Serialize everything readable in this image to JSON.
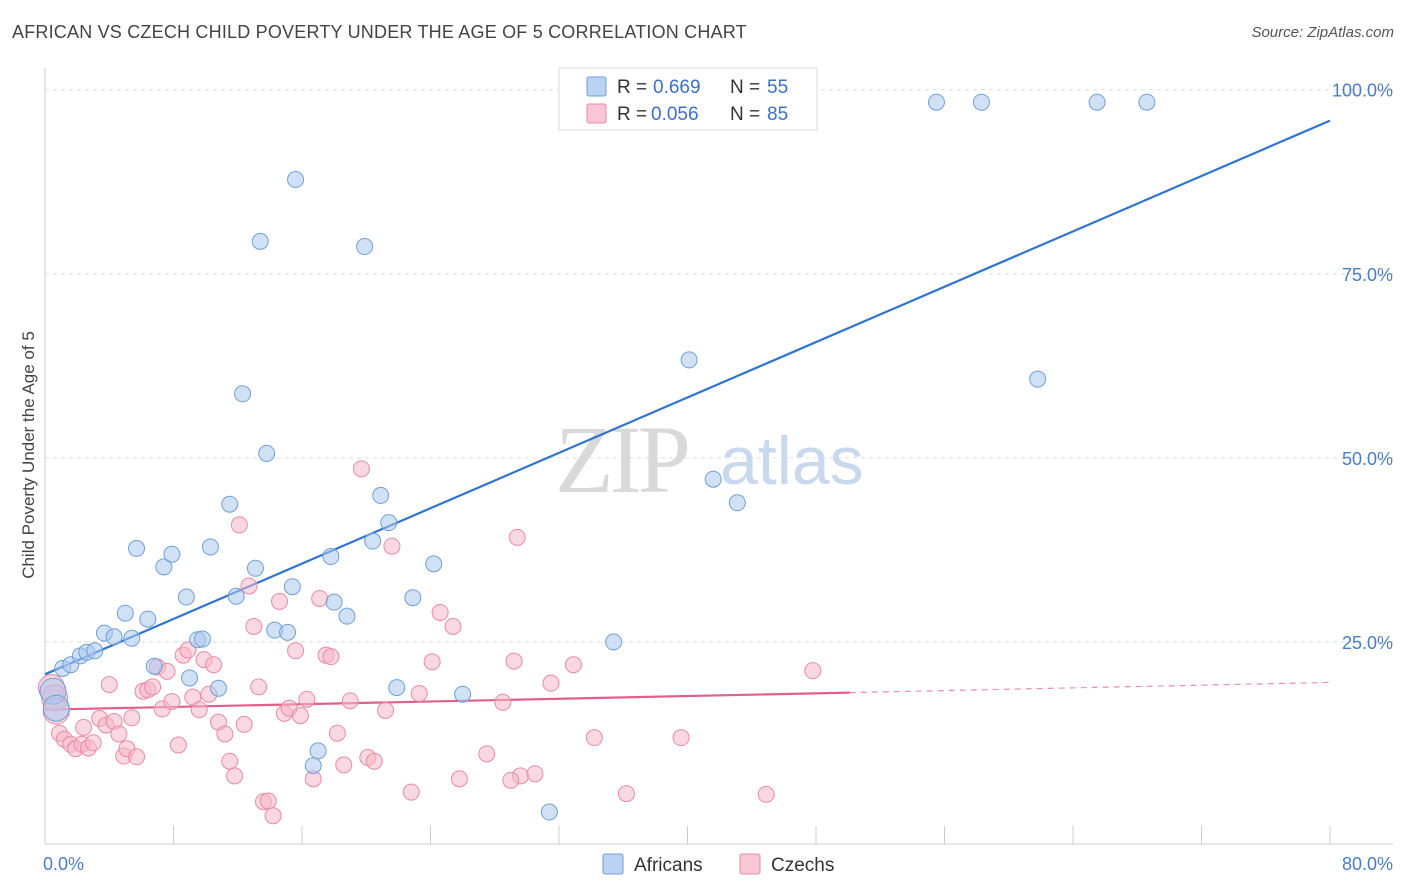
{
  "header": {
    "title": "AFRICAN VS CZECH CHILD POVERTY UNDER THE AGE OF 5 CORRELATION CHART",
    "source": "Source: ZipAtlas.com"
  },
  "watermark": {
    "zip": "ZIP",
    "atlas": "atlas"
  },
  "legend": {
    "r_label": "R =",
    "n_label": "N =",
    "rows": [
      {
        "r": "0.669",
        "n": "55",
        "color": "#a9c8ef"
      },
      {
        "r": "0.056",
        "n": "85",
        "color": "#f6b8c9"
      }
    ]
  },
  "bottom_legend": [
    {
      "label": "Africans",
      "color": "#a9c8ef"
    },
    {
      "label": "Czechs",
      "color": "#f6b8c9"
    }
  ],
  "colors": {
    "africans_fill": "#a9c8ef",
    "africans_stroke": "#6f9fd8",
    "africans_line": "#2f74d0",
    "czechs_fill": "#f6b8c9",
    "czechs_stroke": "#e98aa6",
    "czechs_line": "#e0608a",
    "tick_text": "#4a7cc7",
    "grid": "#dddddd"
  },
  "chart_data": {
    "type": "scatter",
    "title": "AFRICAN VS CZECH CHILD POVERTY UNDER THE AGE OF 5 CORRELATION CHART",
    "xlabel": "",
    "ylabel": "Child Poverty Under the Age of 5",
    "xlim": [
      0,
      80
    ],
    "ylim": [
      0,
      100
    ],
    "x_tick_labels": [
      "0.0%",
      "80.0%"
    ],
    "y_ticks": [
      25,
      50,
      75,
      100
    ],
    "y_tick_labels": [
      "25.0%",
      "50.0%",
      "75.0%",
      "100.0%"
    ],
    "grid": true,
    "legend_position": "top-center",
    "series": [
      {
        "name": "Africans",
        "r": 0.669,
        "n": 55,
        "trend": {
          "x0": 0,
          "y0": 20.6,
          "x1": 80,
          "y1": 95.8,
          "dashed_from": null
        },
        "points": [
          [
            0.5,
            18.3
          ],
          [
            0.7,
            16.0
          ],
          [
            1.1,
            21.4
          ],
          [
            1.6,
            21.9
          ],
          [
            2.2,
            23.1
          ],
          [
            2.6,
            23.6
          ],
          [
            3.1,
            23.8
          ],
          [
            3.7,
            26.2
          ],
          [
            4.3,
            25.7
          ],
          [
            5.0,
            28.9
          ],
          [
            5.4,
            25.5
          ],
          [
            5.7,
            37.7
          ],
          [
            6.4,
            28.1
          ],
          [
            6.8,
            21.7
          ],
          [
            7.4,
            35.2
          ],
          [
            7.9,
            36.9
          ],
          [
            8.8,
            31.1
          ],
          [
            9.0,
            20.1
          ],
          [
            9.5,
            25.3
          ],
          [
            9.8,
            25.4
          ],
          [
            10.3,
            37.9
          ],
          [
            10.8,
            18.7
          ],
          [
            11.5,
            43.7
          ],
          [
            11.9,
            31.2
          ],
          [
            12.3,
            58.7
          ],
          [
            13.1,
            35.0
          ],
          [
            13.4,
            79.4
          ],
          [
            13.8,
            50.6
          ],
          [
            14.3,
            26.6
          ],
          [
            15.1,
            26.3
          ],
          [
            15.4,
            32.5
          ],
          [
            15.6,
            87.8
          ],
          [
            16.7,
            8.2
          ],
          [
            17.0,
            10.2
          ],
          [
            17.8,
            36.6
          ],
          [
            18.0,
            30.4
          ],
          [
            18.8,
            28.5
          ],
          [
            19.9,
            78.7
          ],
          [
            20.4,
            38.7
          ],
          [
            20.9,
            44.9
          ],
          [
            21.4,
            41.2
          ],
          [
            21.9,
            18.8
          ],
          [
            22.9,
            31.0
          ],
          [
            24.2,
            35.6
          ],
          [
            26.0,
            17.9
          ],
          [
            31.4,
            1.9
          ],
          [
            35.4,
            25.0
          ],
          [
            40.1,
            63.3
          ],
          [
            41.6,
            47.1
          ],
          [
            43.1,
            43.9
          ],
          [
            55.5,
            98.3
          ],
          [
            58.3,
            98.3
          ],
          [
            61.8,
            60.7
          ],
          [
            65.5,
            98.3
          ],
          [
            68.6,
            98.3
          ]
        ]
      },
      {
        "name": "Czechs",
        "r": 0.056,
        "n": 85,
        "trend": {
          "x0": 0,
          "y0": 15.8,
          "x1": 80,
          "y1": 19.5,
          "dashed_from": 50.1
        },
        "points": [
          [
            0.4,
            18.8
          ],
          [
            0.6,
            17.4
          ],
          [
            0.7,
            15.6
          ],
          [
            0.9,
            12.6
          ],
          [
            1.2,
            11.8
          ],
          [
            1.6,
            11.1
          ],
          [
            1.9,
            10.5
          ],
          [
            2.3,
            11.1
          ],
          [
            2.4,
            13.4
          ],
          [
            2.7,
            10.6
          ],
          [
            3.0,
            11.3
          ],
          [
            3.4,
            14.6
          ],
          [
            3.8,
            13.7
          ],
          [
            4.0,
            19.2
          ],
          [
            4.3,
            14.2
          ],
          [
            4.6,
            12.5
          ],
          [
            4.9,
            9.5
          ],
          [
            5.1,
            10.5
          ],
          [
            5.4,
            14.7
          ],
          [
            5.7,
            9.4
          ],
          [
            6.1,
            18.3
          ],
          [
            6.4,
            18.5
          ],
          [
            6.7,
            18.9
          ],
          [
            7.0,
            21.6
          ],
          [
            7.3,
            15.9
          ],
          [
            7.6,
            21.0
          ],
          [
            7.9,
            16.9
          ],
          [
            8.3,
            11.0
          ],
          [
            8.6,
            23.2
          ],
          [
            8.9,
            23.9
          ],
          [
            9.2,
            17.5
          ],
          [
            9.6,
            15.8
          ],
          [
            9.9,
            22.6
          ],
          [
            10.2,
            17.9
          ],
          [
            10.5,
            21.9
          ],
          [
            10.8,
            14.1
          ],
          [
            11.2,
            12.5
          ],
          [
            11.5,
            8.8
          ],
          [
            11.8,
            6.8
          ],
          [
            12.1,
            40.9
          ],
          [
            12.4,
            13.8
          ],
          [
            12.7,
            32.6
          ],
          [
            13.0,
            27.1
          ],
          [
            13.3,
            18.9
          ],
          [
            13.6,
            3.3
          ],
          [
            13.9,
            3.4
          ],
          [
            14.2,
            1.4
          ],
          [
            14.6,
            30.5
          ],
          [
            14.9,
            15.3
          ],
          [
            15.2,
            16.0
          ],
          [
            15.6,
            23.8
          ],
          [
            15.9,
            15.0
          ],
          [
            16.3,
            17.2
          ],
          [
            16.7,
            6.4
          ],
          [
            17.1,
            30.9
          ],
          [
            17.5,
            23.2
          ],
          [
            17.8,
            23.0
          ],
          [
            18.2,
            12.6
          ],
          [
            18.6,
            8.3
          ],
          [
            19.0,
            17.0
          ],
          [
            19.7,
            48.5
          ],
          [
            20.1,
            9.3
          ],
          [
            20.5,
            8.8
          ],
          [
            21.2,
            15.7
          ],
          [
            21.6,
            38.0
          ],
          [
            22.8,
            4.6
          ],
          [
            23.3,
            18.0
          ],
          [
            24.1,
            22.3
          ],
          [
            24.6,
            29.0
          ],
          [
            25.4,
            27.1
          ],
          [
            25.8,
            6.4
          ],
          [
            27.5,
            9.8
          ],
          [
            28.5,
            16.8
          ],
          [
            29.2,
            22.4
          ],
          [
            29.4,
            39.2
          ],
          [
            29.6,
            6.8
          ],
          [
            30.5,
            7.1
          ],
          [
            31.5,
            19.4
          ],
          [
            32.9,
            21.9
          ],
          [
            34.2,
            12.0
          ],
          [
            36.2,
            4.4
          ],
          [
            39.6,
            12.0
          ],
          [
            44.9,
            4.3
          ],
          [
            47.8,
            21.1
          ],
          [
            29.0,
            6.2
          ]
        ]
      }
    ]
  }
}
